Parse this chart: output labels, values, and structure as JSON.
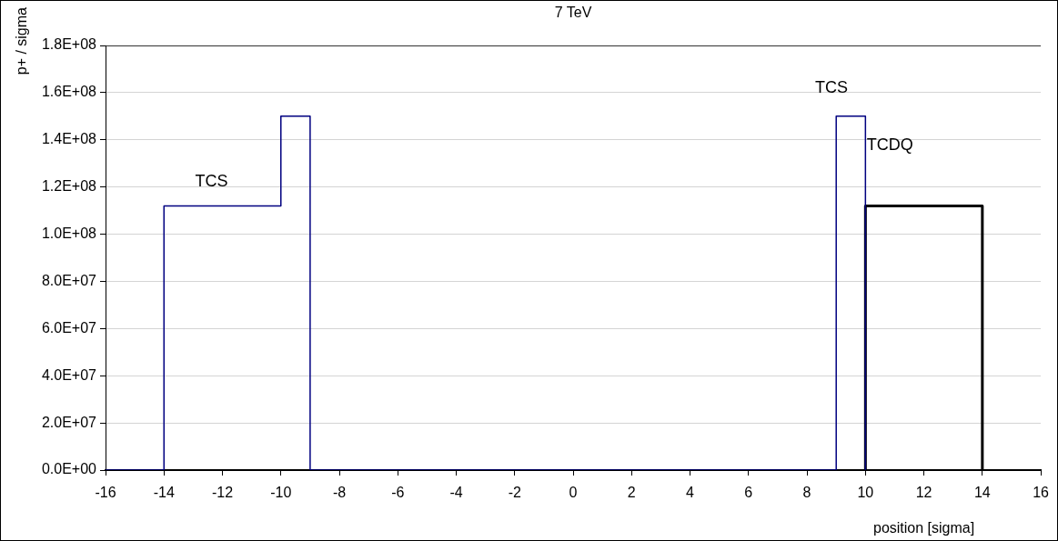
{
  "chart_data": {
    "type": "line",
    "title": "7 TeV",
    "xlabel": "position [sigma]",
    "ylabel": "p+ / sigma",
    "xlim": [
      -16,
      16
    ],
    "xticks": [
      -16,
      -14,
      -12,
      -10,
      -8,
      -6,
      -4,
      -2,
      0,
      2,
      4,
      6,
      8,
      10,
      12,
      14,
      16
    ],
    "ylim": [
      0,
      180000000
    ],
    "yticks": [
      {
        "value": 0,
        "label": "0.0E+00"
      },
      {
        "value": 20000000,
        "label": "2.0E+07"
      },
      {
        "value": 40000000,
        "label": "4.0E+07"
      },
      {
        "value": 60000000,
        "label": "6.0E+07"
      },
      {
        "value": 80000000,
        "label": "8.0E+07"
      },
      {
        "value": 100000000,
        "label": "1.0E+08"
      },
      {
        "value": 120000000,
        "label": "1.2E+08"
      },
      {
        "value": 140000000,
        "label": "1.4E+08"
      },
      {
        "value": 160000000,
        "label": "1.6E+08"
      },
      {
        "value": 180000000,
        "label": "1.8E+08"
      }
    ],
    "grid": "y",
    "legend": false,
    "marker": "none",
    "line_style": "solid",
    "series": [
      {
        "color": "#000080",
        "x": [
          -16,
          -14,
          -14,
          -10,
          -10,
          -9,
          -9,
          9,
          9,
          10,
          10
        ],
        "values": [
          0,
          0,
          112000000,
          112000000,
          150000000,
          150000000,
          0,
          0,
          150000000,
          150000000,
          0
        ]
      },
      {
        "color": "#000000",
        "x": [
          10,
          10,
          14,
          14
        ],
        "values": [
          0,
          112000000,
          112000000,
          0
        ]
      }
    ],
    "annotations": [
      "TCS",
      "TCS",
      "TCDQ"
    ]
  }
}
